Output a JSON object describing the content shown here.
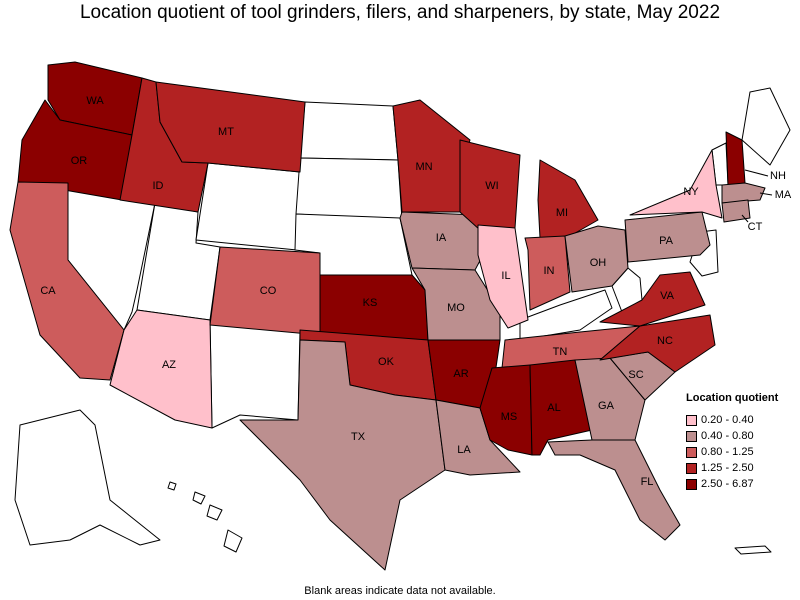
{
  "title": "Location quotient of tool grinders, filers, and sharpeners, by state, May 2022",
  "footnote": "Blank areas indicate data not available.",
  "legend": {
    "title": "Location quotient",
    "items": [
      {
        "label": "0.20 - 0.40",
        "color": "#ffc0cb"
      },
      {
        "label": "0.40 - 0.80",
        "color": "#bc8f8f"
      },
      {
        "label": "0.80 - 1.25",
        "color": "#cd5c5c"
      },
      {
        "label": "1.25 - 2.50",
        "color": "#b22222"
      },
      {
        "label": "2.50 - 6.87",
        "color": "#8b0000"
      }
    ]
  },
  "states": [
    {
      "abbr": "WA",
      "class": "2.50 - 6.87"
    },
    {
      "abbr": "OR",
      "class": "2.50 - 6.87"
    },
    {
      "abbr": "ID",
      "class": "1.25 - 2.50"
    },
    {
      "abbr": "MT",
      "class": "1.25 - 2.50"
    },
    {
      "abbr": "CA",
      "class": "0.80 - 1.25"
    },
    {
      "abbr": "AZ",
      "class": "0.20 - 0.40"
    },
    {
      "abbr": "CO",
      "class": "0.80 - 1.25"
    },
    {
      "abbr": "KS",
      "class": "2.50 - 6.87"
    },
    {
      "abbr": "OK",
      "class": "1.25 - 2.50"
    },
    {
      "abbr": "TX",
      "class": "0.40 - 0.80"
    },
    {
      "abbr": "MN",
      "class": "1.25 - 2.50"
    },
    {
      "abbr": "IA",
      "class": "0.40 - 0.80"
    },
    {
      "abbr": "MO",
      "class": "0.40 - 0.80"
    },
    {
      "abbr": "AR",
      "class": "2.50 - 6.87"
    },
    {
      "abbr": "LA",
      "class": "0.40 - 0.80"
    },
    {
      "abbr": "WI",
      "class": "1.25 - 2.50"
    },
    {
      "abbr": "IL",
      "class": "0.20 - 0.40"
    },
    {
      "abbr": "MI",
      "class": "1.25 - 2.50"
    },
    {
      "abbr": "IN",
      "class": "0.80 - 1.25"
    },
    {
      "abbr": "OH",
      "class": "0.40 - 0.80"
    },
    {
      "abbr": "TN",
      "class": "0.80 - 1.25"
    },
    {
      "abbr": "MS",
      "class": "2.50 - 6.87"
    },
    {
      "abbr": "AL",
      "class": "2.50 - 6.87"
    },
    {
      "abbr": "GA",
      "class": "0.40 - 0.80"
    },
    {
      "abbr": "FL",
      "class": "0.40 - 0.80"
    },
    {
      "abbr": "SC",
      "class": "0.40 - 0.80"
    },
    {
      "abbr": "NC",
      "class": "1.25 - 2.50"
    },
    {
      "abbr": "VA",
      "class": "1.25 - 2.50"
    },
    {
      "abbr": "PA",
      "class": "0.40 - 0.80"
    },
    {
      "abbr": "NY",
      "class": "0.20 - 0.40"
    },
    {
      "abbr": "NH",
      "class": "2.50 - 6.87"
    },
    {
      "abbr": "MA",
      "class": "0.40 - 0.80"
    },
    {
      "abbr": "CT",
      "class": "0.40 - 0.80"
    }
  ]
}
